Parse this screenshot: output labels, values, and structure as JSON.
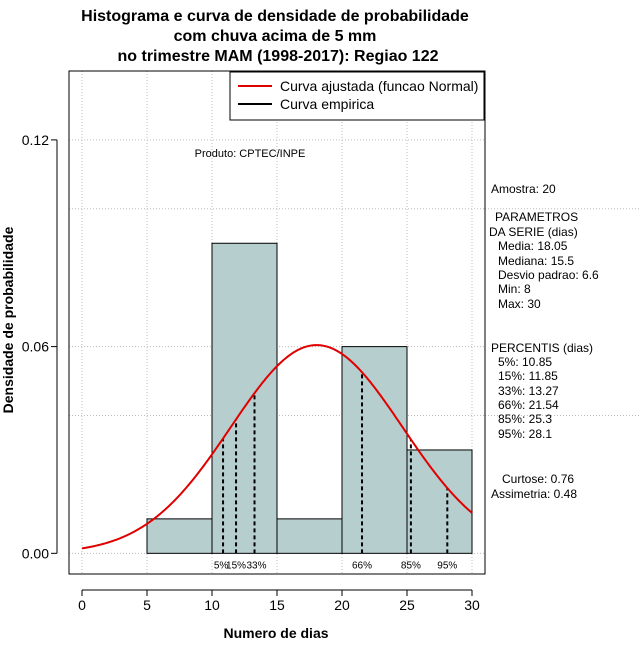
{
  "chart_data": {
    "type": "bar",
    "title_lines": [
      "Histograma e curva de densidade de probabilidade",
      "com chuva acima de 5 mm",
      "no trimestre MAM (1998-2017): Regiao 122"
    ],
    "xlabel": "Numero de dias",
    "ylabel": "Densidade de probabilidade",
    "xlim": [
      -1,
      31
    ],
    "ylim": [
      -0.006,
      0.14
    ],
    "x_ticks": [
      "0",
      "5",
      "10",
      "15",
      "20",
      "25",
      "30"
    ],
    "x_tick_values": [
      0,
      5,
      10,
      15,
      20,
      25,
      30
    ],
    "y_ticks": [
      "0.00",
      "0.06",
      "0.12"
    ],
    "y_tick_values": [
      0.0,
      0.06,
      0.12
    ],
    "grid": true,
    "bins": [
      {
        "start": 5,
        "end": 10,
        "density": 0.01
      },
      {
        "start": 10,
        "end": 15,
        "density": 0.09
      },
      {
        "start": 15,
        "end": 20,
        "density": 0.01
      },
      {
        "start": 20,
        "end": 25,
        "density": 0.06
      },
      {
        "start": 25,
        "end": 30,
        "density": 0.03
      }
    ],
    "normal_curve": {
      "name": "Curva ajustada (funcao Normal)",
      "mean": 18.05,
      "sd": 6.6,
      "x_range": [
        0,
        30
      ],
      "color": "#e00000"
    },
    "legend": {
      "position": "top-right",
      "entries": [
        {
          "label": "Curva ajustada (funcao Normal)",
          "color": "#e00000"
        },
        {
          "label": "Curva empirica",
          "color": "#000000"
        }
      ]
    },
    "annotation": "Produto: CPTEC/INPE",
    "percentile_lines": [
      {
        "label": "5%",
        "x": 10.85
      },
      {
        "label": "15%",
        "x": 11.85
      },
      {
        "label": "33%",
        "x": 13.27
      },
      {
        "label": "66%",
        "x": 21.54
      },
      {
        "label": "85%",
        "x": 25.3
      },
      {
        "label": "95%",
        "x": 28.1
      }
    ],
    "colors": {
      "bar_fill": "#b7cecf",
      "bar_stroke": "#000000",
      "curve": "#e00000",
      "grid": "#bdbdbd"
    }
  },
  "side_panel": {
    "sample": "Amostra: 20",
    "params_title_1": "PARAMETROS",
    "params_title_2": "DA SERIE (dias)",
    "params": [
      "Media: 18.05",
      "Mediana: 15.5",
      "Desvio padrao: 6.6",
      "Min: 8",
      "Max: 30"
    ],
    "percentis_title": "PERCENTIS (dias)",
    "percentis": [
      "5%: 10.85",
      "15%: 11.85",
      "33%: 13.27",
      "66%: 21.54",
      "85%: 25.3",
      "95%: 28.1"
    ],
    "curtose": "Curtose: 0.76",
    "assimetria": "Assimetria: 0.48"
  }
}
